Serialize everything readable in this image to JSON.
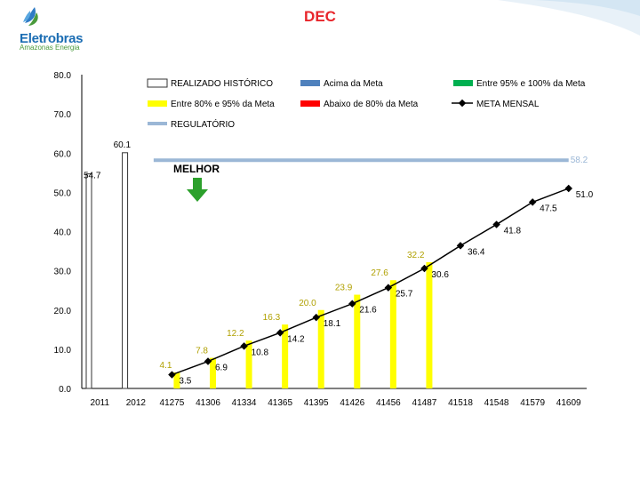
{
  "header": {
    "title": "DEC",
    "logo_name": "Eletrobras",
    "logo_tagline": "Amazonas Energia"
  },
  "colors": {
    "realizado_fill": "#ffffff",
    "realizado_stroke": "#333333",
    "entre80_95": "#ffff00",
    "acima_meta": "#4f81bd",
    "abaixo80": "#ff0000",
    "entre95_100": "#00b050",
    "meta_mensal": "#000000",
    "regulatorio": "#9bb7d6",
    "arrow": "#2ca02c",
    "title": "#e8252b"
  },
  "annotation": "MELHOR",
  "chart_data": {
    "type": "bar",
    "title": "",
    "xlabel": "",
    "ylabel": "",
    "ylim": [
      0,
      80
    ],
    "yticks": [
      "0.0",
      "10.0",
      "20.0",
      "30.0",
      "40.0",
      "50.0",
      "60.0",
      "70.0",
      "80.0"
    ],
    "categories": [
      "2011",
      "2012",
      "41275",
      "41306",
      "41334",
      "41365",
      "41395",
      "41426",
      "41456",
      "41487",
      "41518",
      "41548",
      "41579",
      "41609"
    ],
    "series": [
      {
        "name": "REALIZADO HISTÓRICO",
        "kind": "bar",
        "values": [
          54.7,
          60.1,
          null,
          null,
          null,
          null,
          null,
          null,
          null,
          null,
          null,
          null,
          null,
          null
        ]
      },
      {
        "name": "Entre 80% e 95% da Meta",
        "kind": "bar",
        "values": [
          null,
          null,
          4.1,
          7.8,
          12.2,
          16.3,
          20.0,
          23.9,
          27.6,
          32.2,
          null,
          null,
          null,
          null
        ]
      },
      {
        "name": "Acima da Meta",
        "kind": "bar",
        "values": [
          null,
          null,
          null,
          null,
          null,
          null,
          null,
          null,
          null,
          null,
          null,
          null,
          null,
          null
        ]
      },
      {
        "name": "Abaixo de 80% da Meta",
        "kind": "bar",
        "values": [
          null,
          null,
          null,
          null,
          null,
          null,
          null,
          null,
          null,
          null,
          null,
          null,
          null,
          null
        ]
      },
      {
        "name": "Entre 95% e 100% da Meta",
        "kind": "bar",
        "values": [
          null,
          null,
          null,
          null,
          null,
          null,
          null,
          null,
          null,
          null,
          null,
          null,
          null,
          null
        ]
      },
      {
        "name": "META MENSAL",
        "kind": "line",
        "values": [
          null,
          null,
          3.5,
          6.9,
          10.8,
          14.2,
          18.1,
          21.6,
          25.7,
          30.6,
          36.4,
          41.8,
          47.5,
          51.0
        ]
      },
      {
        "name": "REGULATÓRIO",
        "kind": "hline",
        "value": 58.2,
        "from_index": 1,
        "to_index": 13
      }
    ],
    "legend": "top"
  }
}
